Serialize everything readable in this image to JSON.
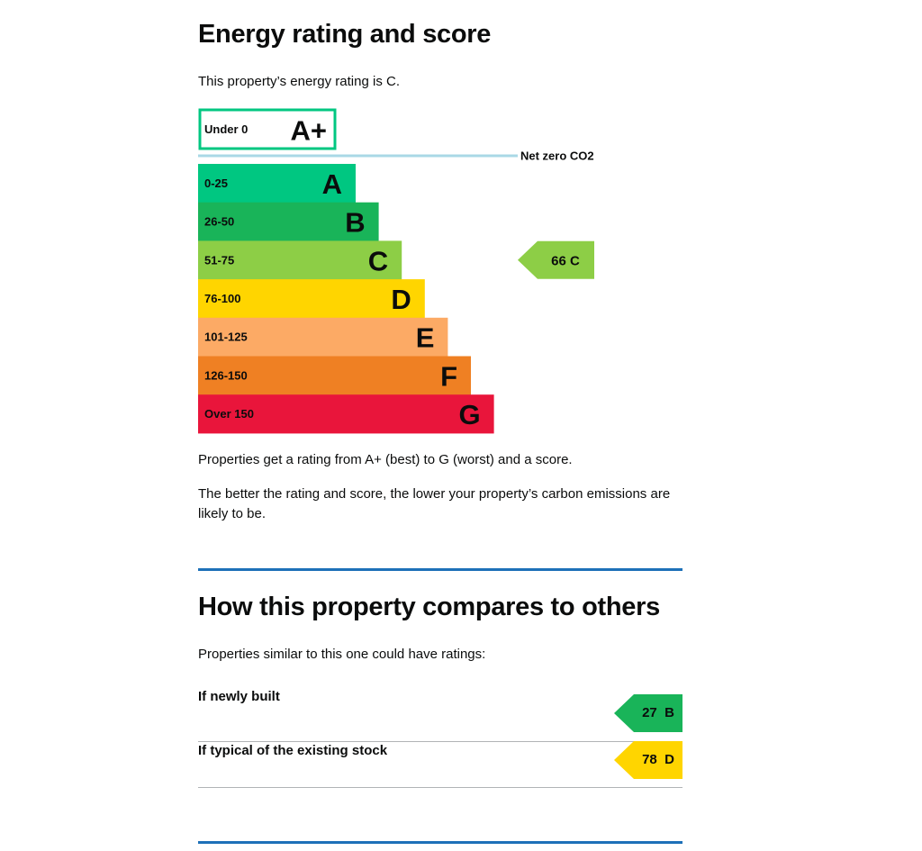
{
  "section1": {
    "title": "Energy rating and score",
    "intro": "This property’s energy rating is C.",
    "note1": "Properties get a rating from A+ (best) to G (worst) and a score.",
    "note2": "The better the rating and score, the lower your property’s carbon emissions are likely to be."
  },
  "chart_data": {
    "type": "bar",
    "categories": [
      "A+",
      "A",
      "B",
      "C",
      "D",
      "E",
      "F",
      "G"
    ],
    "ranges": [
      "Under 0",
      "0-25",
      "26-50",
      "51-75",
      "76-100",
      "101-125",
      "126-150",
      "Over 150"
    ],
    "colors": [
      "#00c781",
      "#00c781",
      "#19b459",
      "#8dce46",
      "#ffd500",
      "#fcaa65",
      "#ef8023",
      "#e9153b"
    ],
    "net_zero_label": "Net zero CO2",
    "current": {
      "score": 66,
      "rating": "C"
    }
  },
  "section2": {
    "title": "How this property compares to others",
    "intro": "Properties similar to this one could have ratings:",
    "rows": [
      {
        "label": "If newly built",
        "score": "27",
        "rating": "B",
        "color": "#19b459"
      },
      {
        "label": "If typical of the existing stock",
        "score": "78",
        "rating": "D",
        "color": "#ffd500"
      }
    ]
  }
}
